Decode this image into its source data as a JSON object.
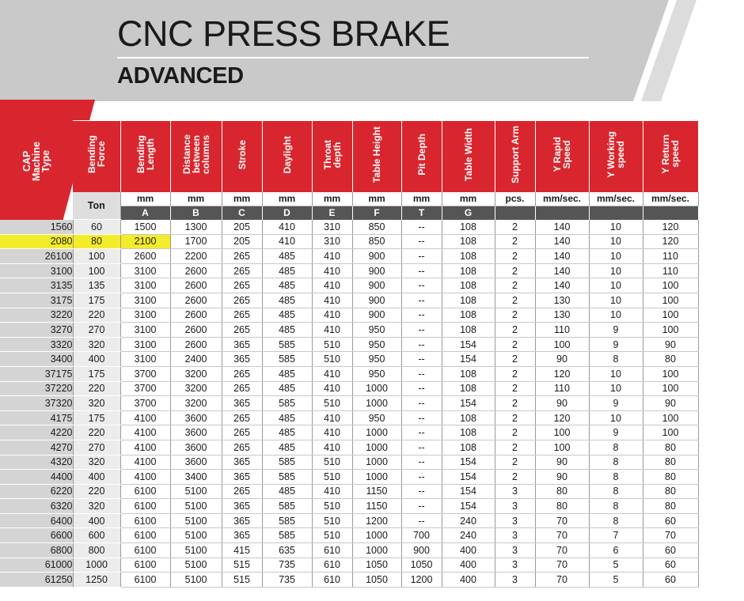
{
  "header": {
    "title": "CNC PRESS BRAKE",
    "subtitle": "ADVANCED"
  },
  "colors": {
    "brand_red": "#d9262e",
    "banner_gray": "#c8c8c8",
    "highlight": "#f3ec2a"
  },
  "table": {
    "corner_label": "CAP\nMachine\nType",
    "columns": [
      {
        "label": "Bending\nForce",
        "unit": "Ton",
        "letter": ""
      },
      {
        "label": "Bending\nLength",
        "unit": "mm",
        "letter": "A"
      },
      {
        "label": "Distance\nbetween\ncolumns",
        "unit": "mm",
        "letter": "B"
      },
      {
        "label": "Stroke",
        "unit": "mm",
        "letter": "C"
      },
      {
        "label": "Daylight",
        "unit": "mm",
        "letter": "D"
      },
      {
        "label": "Throat\ndepth",
        "unit": "mm",
        "letter": "E"
      },
      {
        "label": "Table Height",
        "unit": "mm",
        "letter": "F"
      },
      {
        "label": "Pit Depth",
        "unit": "mm",
        "letter": "T"
      },
      {
        "label": "Table Width",
        "unit": "mm",
        "letter": "G"
      },
      {
        "label": "Support Arm",
        "unit": "pcs.",
        "letter": ""
      },
      {
        "label": "Y Rapid\nSpeed",
        "unit": "mm/sec.",
        "letter": ""
      },
      {
        "label": "Y Working\nspeed",
        "unit": "mm/sec.",
        "letter": ""
      },
      {
        "label": "Y Return\nspeed",
        "unit": "mm/sec.",
        "letter": ""
      }
    ],
    "highlighted_row": 1,
    "rows": [
      [
        "1560",
        "60",
        "1500",
        "1300",
        "205",
        "410",
        "310",
        "850",
        "--",
        "108",
        "2",
        "140",
        "10",
        "120"
      ],
      [
        "2080",
        "80",
        "2100",
        "1700",
        "205",
        "410",
        "310",
        "850",
        "--",
        "108",
        "2",
        "140",
        "10",
        "120"
      ],
      [
        "26100",
        "100",
        "2600",
        "2200",
        "265",
        "485",
        "410",
        "900",
        "--",
        "108",
        "2",
        "140",
        "10",
        "110"
      ],
      [
        "3100",
        "100",
        "3100",
        "2600",
        "265",
        "485",
        "410",
        "900",
        "--",
        "108",
        "2",
        "140",
        "10",
        "110"
      ],
      [
        "3135",
        "135",
        "3100",
        "2600",
        "265",
        "485",
        "410",
        "900",
        "--",
        "108",
        "2",
        "140",
        "10",
        "100"
      ],
      [
        "3175",
        "175",
        "3100",
        "2600",
        "265",
        "485",
        "410",
        "900",
        "--",
        "108",
        "2",
        "130",
        "10",
        "100"
      ],
      [
        "3220",
        "220",
        "3100",
        "2600",
        "265",
        "485",
        "410",
        "900",
        "--",
        "108",
        "2",
        "130",
        "10",
        "100"
      ],
      [
        "3270",
        "270",
        "3100",
        "2600",
        "265",
        "485",
        "410",
        "950",
        "--",
        "108",
        "2",
        "110",
        "9",
        "100"
      ],
      [
        "3320",
        "320",
        "3100",
        "2600",
        "365",
        "585",
        "510",
        "950",
        "--",
        "154",
        "2",
        "100",
        "9",
        "90"
      ],
      [
        "3400",
        "400",
        "3100",
        "2400",
        "365",
        "585",
        "510",
        "950",
        "--",
        "154",
        "2",
        "90",
        "8",
        "80"
      ],
      [
        "37175",
        "175",
        "3700",
        "3200",
        "265",
        "485",
        "410",
        "950",
        "--",
        "108",
        "2",
        "120",
        "10",
        "100"
      ],
      [
        "37220",
        "220",
        "3700",
        "3200",
        "265",
        "485",
        "410",
        "1000",
        "--",
        "108",
        "2",
        "110",
        "10",
        "100"
      ],
      [
        "37320",
        "320",
        "3700",
        "3200",
        "365",
        "585",
        "510",
        "1000",
        "--",
        "154",
        "2",
        "90",
        "9",
        "90"
      ],
      [
        "4175",
        "175",
        "4100",
        "3600",
        "265",
        "485",
        "410",
        "950",
        "--",
        "108",
        "2",
        "120",
        "10",
        "100"
      ],
      [
        "4220",
        "220",
        "4100",
        "3600",
        "265",
        "485",
        "410",
        "1000",
        "--",
        "108",
        "2",
        "100",
        "9",
        "100"
      ],
      [
        "4270",
        "270",
        "4100",
        "3600",
        "265",
        "485",
        "410",
        "1000",
        "--",
        "108",
        "2",
        "100",
        "8",
        "80"
      ],
      [
        "4320",
        "320",
        "4100",
        "3600",
        "365",
        "585",
        "510",
        "1000",
        "--",
        "154",
        "2",
        "90",
        "8",
        "80"
      ],
      [
        "4400",
        "400",
        "4100",
        "3400",
        "365",
        "585",
        "510",
        "1000",
        "--",
        "154",
        "2",
        "90",
        "8",
        "80"
      ],
      [
        "6220",
        "220",
        "6100",
        "5100",
        "265",
        "485",
        "410",
        "1150",
        "--",
        "154",
        "3",
        "80",
        "8",
        "80"
      ],
      [
        "6320",
        "320",
        "6100",
        "5100",
        "365",
        "585",
        "510",
        "1150",
        "--",
        "154",
        "3",
        "80",
        "8",
        "80"
      ],
      [
        "6400",
        "400",
        "6100",
        "5100",
        "365",
        "585",
        "510",
        "1200",
        "--",
        "240",
        "3",
        "70",
        "8",
        "60"
      ],
      [
        "6600",
        "600",
        "6100",
        "5100",
        "365",
        "585",
        "510",
        "1000",
        "700",
        "240",
        "3",
        "70",
        "7",
        "70"
      ],
      [
        "6800",
        "800",
        "6100",
        "5100",
        "415",
        "635",
        "610",
        "1000",
        "900",
        "400",
        "3",
        "70",
        "6",
        "60"
      ],
      [
        "61000",
        "1000",
        "6100",
        "5100",
        "515",
        "735",
        "610",
        "1050",
        "1050",
        "400",
        "3",
        "70",
        "5",
        "60"
      ],
      [
        "61250",
        "1250",
        "6100",
        "5100",
        "515",
        "735",
        "610",
        "1050",
        "1200",
        "400",
        "3",
        "70",
        "5",
        "60"
      ]
    ]
  }
}
